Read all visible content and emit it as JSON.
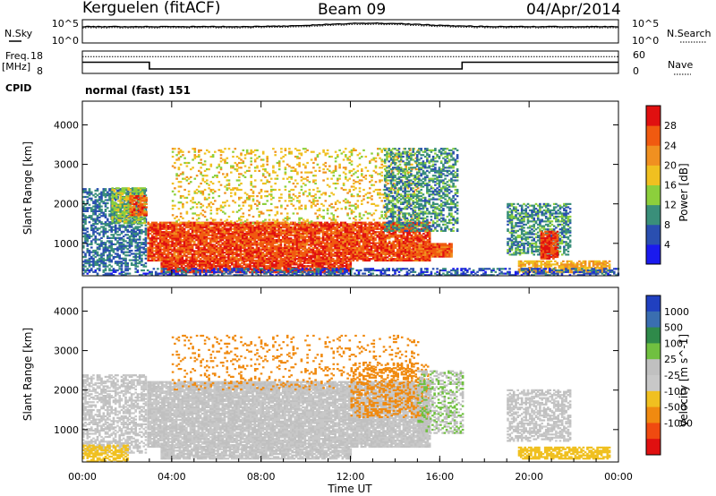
{
  "header": {
    "station": "Kerguelen (fitACF)",
    "beam": "Beam 09",
    "date": "04/Apr/2014"
  },
  "strip_labels": {
    "nsky": "N.Sky",
    "nsky_ticks": [
      "10^5",
      "10^0"
    ],
    "nsearch": "N.Search",
    "nsearch_ticks": [
      "10^5",
      "10^0"
    ],
    "freq_line1": "Freq.",
    "freq_line2": "[MHz]",
    "freq_ticks": [
      "18",
      "8"
    ],
    "nave": "Nave",
    "nave_ticks": [
      "60",
      "0"
    ],
    "cpid": "CPID",
    "cpid_value": "normal (fast) 151"
  },
  "colors": {
    "power": [
      "#1a1aee",
      "#2a4fb0",
      "#3a8f7a",
      "#8ccf3c",
      "#f0c020",
      "#f09020",
      "#f05a10",
      "#e01010"
    ],
    "velocity": [
      "#2040c0",
      "#3a6eb0",
      "#2f8a4a",
      "#70c040",
      "#c0c0c0",
      "#c8c8c8",
      "#f0c020",
      "#f08a10",
      "#f04a10",
      "#e01010"
    ]
  },
  "chart_data": [
    {
      "type": "heatmap",
      "name": "power",
      "ylabel": "Slant Range [km]",
      "ylim": [
        180,
        4600
      ],
      "y_ticks": [
        "1000",
        "2000",
        "3000",
        "4000"
      ],
      "colorbar_label": "Power [dB]",
      "colorbar_ticks": [
        "4",
        "8",
        "12",
        "16",
        "20",
        "24",
        "28"
      ],
      "colorbar_range": [
        0,
        32
      ],
      "regions": [
        {
          "t0": 0.0,
          "t1": 2.8,
          "r0": 400,
          "r1": 2400,
          "power": 8,
          "density": 0.6
        },
        {
          "t0": 1.3,
          "t1": 2.8,
          "r0": 1500,
          "r1": 2400,
          "power": 14,
          "density": 0.7
        },
        {
          "t0": 2.1,
          "t1": 2.9,
          "r0": 1700,
          "r1": 2200,
          "power": 26,
          "density": 0.8
        },
        {
          "t0": 2.9,
          "t1": 15.5,
          "r0": 550,
          "r1": 1550,
          "power": 27,
          "density": 0.9
        },
        {
          "t0": 3.5,
          "t1": 12.0,
          "r0": 250,
          "r1": 550,
          "power": 28,
          "density": 0.85
        },
        {
          "t0": 4.0,
          "t1": 15.0,
          "r0": 1500,
          "r1": 3400,
          "power": 18,
          "density": 0.2
        },
        {
          "t0": 13.5,
          "t1": 16.8,
          "r0": 1300,
          "r1": 3400,
          "power": 10,
          "density": 0.5
        },
        {
          "t0": 14.5,
          "t1": 16.5,
          "r0": 650,
          "r1": 1000,
          "power": 26,
          "density": 0.9
        },
        {
          "t0": 19.0,
          "t1": 21.8,
          "r0": 700,
          "r1": 2000,
          "power": 10,
          "density": 0.6
        },
        {
          "t0": 20.5,
          "t1": 21.3,
          "r0": 600,
          "r1": 1300,
          "power": 28,
          "density": 0.85
        },
        {
          "t0": 19.5,
          "t1": 23.6,
          "r0": 250,
          "r1": 550,
          "power": 20,
          "density": 0.7
        },
        {
          "t0": 0.0,
          "t1": 24.0,
          "r0": 180,
          "r1": 350,
          "power": 6,
          "density": 0.5
        }
      ]
    },
    {
      "type": "heatmap",
      "name": "velocity",
      "xlabel": "Time UT",
      "ylabel": "Slant Range [km]",
      "ylim": [
        180,
        4600
      ],
      "xlim": [
        0,
        24
      ],
      "x_ticks": [
        "00:00",
        "04:00",
        "08:00",
        "12:00",
        "16:00",
        "20:00",
        "00:00"
      ],
      "y_ticks": [
        "1000",
        "2000",
        "3000",
        "4000"
      ],
      "colorbar_label": "Velocity [m s^-1]",
      "colorbar_ticks": [
        "1000",
        "500",
        "100",
        "25",
        "-25",
        "-100",
        "-500",
        "-1000"
      ],
      "regions": [
        {
          "t0": 0.0,
          "t1": 2.8,
          "r0": 400,
          "r1": 2400,
          "velocity": 0,
          "density": 0.6
        },
        {
          "t0": 0.0,
          "t1": 2.0,
          "r0": 180,
          "r1": 600,
          "velocity": -60,
          "density": 0.6
        },
        {
          "t0": 2.9,
          "t1": 15.5,
          "r0": 550,
          "r1": 2200,
          "velocity": 0,
          "density": 0.9
        },
        {
          "t0": 3.5,
          "t1": 12.0,
          "r0": 250,
          "r1": 550,
          "velocity": 0,
          "density": 0.85
        },
        {
          "t0": 12.0,
          "t1": 15.5,
          "r0": 1300,
          "r1": 2700,
          "velocity": -300,
          "density": 0.35
        },
        {
          "t0": 15.0,
          "t1": 17.0,
          "r0": 900,
          "r1": 2500,
          "velocity": 20,
          "density": 0.5
        },
        {
          "t0": 19.0,
          "t1": 21.8,
          "r0": 700,
          "r1": 2000,
          "velocity": 0,
          "density": 0.6
        },
        {
          "t0": 19.5,
          "t1": 23.6,
          "r0": 250,
          "r1": 550,
          "velocity": -80,
          "density": 0.7
        },
        {
          "t0": 4.0,
          "t1": 15.0,
          "r0": 2000,
          "r1": 3400,
          "velocity": -150,
          "density": 0.12
        }
      ]
    }
  ],
  "strip_data": {
    "freq_mhz": [
      {
        "t0": 0,
        "t1": 3,
        "f": 13
      },
      {
        "t0": 3,
        "t1": 17,
        "f": 10
      },
      {
        "t0": 17,
        "t1": 24,
        "f": 13
      }
    ],
    "nave": 45,
    "nsky_level": 0.7
  }
}
